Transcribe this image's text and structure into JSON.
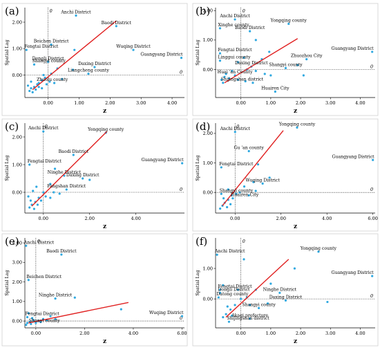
{
  "figure": {
    "colors": {
      "point": "#2ea8e0",
      "line": "#e02020",
      "axis": "#000000",
      "frame": "#cfcfcf"
    }
  },
  "chart_data": [
    {
      "panel": "(a)",
      "type": "scatter",
      "xlabel": "z",
      "ylabel": "Spatial Lag",
      "xlim": [
        -0.75,
        4.4
      ],
      "ylim": [
        -0.85,
        2.55
      ],
      "xticks": [
        "0.00",
        "1.00",
        "2.00",
        "3.00",
        "4.00"
      ],
      "xtick_values": [
        0,
        1,
        2,
        3,
        4
      ],
      "yticks": [
        "0.00",
        "1.00",
        "2.00"
      ],
      "ytick_values": [
        0,
        1,
        2
      ],
      "zero_label": "0",
      "fit_line": [
        [
          -0.5,
          -0.55
        ],
        [
          2.2,
          2.05
        ]
      ],
      "points": [
        {
          "x": 0.9,
          "y": 2.25,
          "label": "Anchi District"
        },
        {
          "x": 2.2,
          "y": 1.85,
          "label": "Baodi District"
        },
        {
          "x": 0.1,
          "y": 1.15,
          "label": "Beichen District"
        },
        {
          "x": -0.7,
          "y": 0.95,
          "label": "Fengtai District"
        },
        {
          "x": 0.0,
          "y": 0.5,
          "label": "Dongli District"
        },
        {
          "x": -0.45,
          "y": 0.4,
          "label": "Shangyi county"
        },
        {
          "x": 2.75,
          "y": 0.95,
          "label": "Wuqing District"
        },
        {
          "x": 4.3,
          "y": 0.65,
          "label": "Guangyang District"
        },
        {
          "x": 1.5,
          "y": 0.3,
          "label": "Daxing District"
        },
        {
          "x": 1.3,
          "y": 0.05,
          "label": "Liangcheng county"
        },
        {
          "x": -0.3,
          "y": -0.3,
          "label": "Zhuolu county"
        },
        {
          "x": 0.85,
          "y": 0.95,
          "label": ""
        },
        {
          "x": 0.8,
          "y": 0.2,
          "label": ""
        },
        {
          "x": 0.3,
          "y": 0.25,
          "label": ""
        },
        {
          "x": 0.1,
          "y": 0.05,
          "label": ""
        },
        {
          "x": -0.1,
          "y": -0.1,
          "label": ""
        },
        {
          "x": -0.2,
          "y": -0.2,
          "label": ""
        },
        {
          "x": -0.35,
          "y": -0.35,
          "label": ""
        },
        {
          "x": -0.45,
          "y": -0.45,
          "label": ""
        },
        {
          "x": -0.55,
          "y": -0.5,
          "label": ""
        },
        {
          "x": -0.6,
          "y": -0.6,
          "label": ""
        },
        {
          "x": -0.5,
          "y": -0.65,
          "label": ""
        },
        {
          "x": -0.4,
          "y": -0.55,
          "label": ""
        },
        {
          "x": -0.3,
          "y": -0.45,
          "label": ""
        },
        {
          "x": -0.2,
          "y": -0.5,
          "label": ""
        },
        {
          "x": -0.05,
          "y": -0.35,
          "label": ""
        },
        {
          "x": 0.05,
          "y": -0.25,
          "label": ""
        },
        {
          "x": 0.2,
          "y": -0.3,
          "label": ""
        },
        {
          "x": -0.65,
          "y": -0.4,
          "label": ""
        },
        {
          "x": -0.15,
          "y": 0.0,
          "label": ""
        },
        {
          "x": 0.45,
          "y": -0.15,
          "label": ""
        },
        {
          "x": -0.55,
          "y": -0.25,
          "label": ""
        }
      ]
    },
    {
      "panel": "(b)",
      "type": "scatter",
      "xlabel": "z",
      "ylabel": "Spatial Lag",
      "xlim": [
        -0.85,
        4.5
      ],
      "ylim": [
        -0.95,
        2.1
      ],
      "xticks": [
        "0.00",
        "1.00",
        "2.00",
        "3.00",
        "4.00"
      ],
      "xtick_values": [
        0,
        1,
        2,
        3,
        4
      ],
      "yticks": [
        "0.00",
        "1.00",
        "2.00"
      ],
      "ytick_values": [
        0,
        1,
        2
      ],
      "zero_label": "0",
      "fit_line": [
        [
          -0.55,
          -0.45
        ],
        [
          1.9,
          1.05
        ]
      ],
      "points": [
        {
          "x": -0.2,
          "y": 1.7,
          "label": "Anchi District"
        },
        {
          "x": 1.6,
          "y": 1.55,
          "label": "Yongqing county"
        },
        {
          "x": -0.7,
          "y": 1.4,
          "label": "Xinghe county"
        },
        {
          "x": 0.3,
          "y": 1.3,
          "label": "Baodi District"
        },
        {
          "x": -0.7,
          "y": 0.55,
          "label": "Fengtai District"
        },
        {
          "x": -0.7,
          "y": 0.3,
          "label": "Linggui county"
        },
        {
          "x": 4.4,
          "y": 0.6,
          "label": "Guangyang District"
        },
        {
          "x": 2.2,
          "y": 0.35,
          "label": "Zhuozhou City"
        },
        {
          "x": 0.35,
          "y": 0.1,
          "label": "Daxing District"
        },
        {
          "x": 1.5,
          "y": 0.05,
          "label": "Shangyi county"
        },
        {
          "x": -0.2,
          "y": -0.2,
          "label": "Huai 'an County"
        },
        {
          "x": -0.6,
          "y": -0.45,
          "label": "Shijingshan district"
        },
        {
          "x": 1.15,
          "y": -0.75,
          "label": "Huairen City"
        },
        {
          "x": 0.5,
          "y": 1.0,
          "label": ""
        },
        {
          "x": 0.95,
          "y": 0.6,
          "label": ""
        },
        {
          "x": 0.7,
          "y": 0.35,
          "label": ""
        },
        {
          "x": 0.1,
          "y": 0.4,
          "label": ""
        },
        {
          "x": -0.1,
          "y": 0.25,
          "label": ""
        },
        {
          "x": 0.2,
          "y": 0.0,
          "label": ""
        },
        {
          "x": 0.5,
          "y": -0.05,
          "label": ""
        },
        {
          "x": 0.8,
          "y": -0.15,
          "label": ""
        },
        {
          "x": 1.0,
          "y": -0.2,
          "label": ""
        },
        {
          "x": -0.3,
          "y": -0.05,
          "label": ""
        },
        {
          "x": -0.5,
          "y": -0.15,
          "label": ""
        },
        {
          "x": -0.4,
          "y": -0.3,
          "label": ""
        },
        {
          "x": -0.55,
          "y": -0.25,
          "label": ""
        },
        {
          "x": -0.65,
          "y": -0.35,
          "label": ""
        },
        {
          "x": -0.1,
          "y": -0.35,
          "label": ""
        },
        {
          "x": 0.15,
          "y": -0.4,
          "label": ""
        },
        {
          "x": 0.4,
          "y": -0.45,
          "label": ""
        },
        {
          "x": 2.1,
          "y": -0.2,
          "label": ""
        },
        {
          "x": 1.9,
          "y": 0.15,
          "label": ""
        }
      ]
    },
    {
      "panel": "(c)",
      "type": "scatter",
      "xlabel": "z",
      "ylabel": "Spatial Lag",
      "xlim": [
        -0.8,
        6.1
      ],
      "ylim": [
        -0.75,
        2.5
      ],
      "xticks": [
        "0.00",
        "2.00",
        "4.00"
      ],
      "xtick_values": [
        0,
        2,
        4
      ],
      "yticks": [
        "0.00",
        "1.00",
        "2.00"
      ],
      "ytick_values": [
        0,
        1,
        2
      ],
      "zero_label": "0",
      "fit_line": [
        [
          -0.5,
          -0.5
        ],
        [
          2.75,
          2.2
        ]
      ],
      "points": [
        {
          "x": 0.0,
          "y": 2.2,
          "label": "Anchi District"
        },
        {
          "x": 2.7,
          "y": 2.15,
          "label": "Yongqing county"
        },
        {
          "x": 1.3,
          "y": 1.35,
          "label": "Baodi District"
        },
        {
          "x": 6.0,
          "y": 1.05,
          "label": "Guangyang District"
        },
        {
          "x": -0.6,
          "y": 1.0,
          "label": "Fengtai District"
        },
        {
          "x": 0.9,
          "y": 0.6,
          "label": "Ninghe District"
        },
        {
          "x": 1.7,
          "y": 0.5,
          "label": "Daxing District"
        },
        {
          "x": 1.0,
          "y": 0.1,
          "label": "Fangshan District"
        },
        {
          "x": 2.0,
          "y": 0.45,
          "label": ""
        },
        {
          "x": 0.5,
          "y": 0.85,
          "label": ""
        },
        {
          "x": 0.3,
          "y": 0.3,
          "label": ""
        },
        {
          "x": 0.0,
          "y": 0.0,
          "label": ""
        },
        {
          "x": -0.2,
          "y": -0.2,
          "label": ""
        },
        {
          "x": -0.35,
          "y": -0.35,
          "label": ""
        },
        {
          "x": -0.5,
          "y": -0.45,
          "label": ""
        },
        {
          "x": -0.6,
          "y": -0.55,
          "label": ""
        },
        {
          "x": -0.4,
          "y": -0.6,
          "label": ""
        },
        {
          "x": -0.55,
          "y": -0.3,
          "label": ""
        },
        {
          "x": -0.25,
          "y": -0.45,
          "label": ""
        },
        {
          "x": -0.1,
          "y": -0.3,
          "label": ""
        },
        {
          "x": 0.1,
          "y": -0.15,
          "label": ""
        },
        {
          "x": 0.3,
          "y": -0.2,
          "label": ""
        },
        {
          "x": -0.65,
          "y": -0.15,
          "label": ""
        },
        {
          "x": -0.45,
          "y": 0.05,
          "label": ""
        },
        {
          "x": 0.45,
          "y": 0.0,
          "label": ""
        },
        {
          "x": 0.7,
          "y": -0.05,
          "label": ""
        },
        {
          "x": -0.3,
          "y": 0.2,
          "label": ""
        }
      ]
    },
    {
      "panel": "(d)",
      "type": "scatter",
      "xlabel": "z",
      "ylabel": "Spatial Lag",
      "xlim": [
        -0.85,
        6.1
      ],
      "ylim": [
        -0.7,
        2.35
      ],
      "xticks": [
        "0.00",
        "2.00",
        "4.00",
        "6.00"
      ],
      "xtick_values": [
        0,
        2,
        4,
        6
      ],
      "yticks": [
        "0.00",
        "1.00",
        "2.00"
      ],
      "ytick_values": [
        0,
        1,
        2
      ],
      "zero_label": "0",
      "fit_line": [
        [
          -0.55,
          -0.45
        ],
        [
          2.1,
          2.1
        ]
      ],
      "points": [
        {
          "x": 0.0,
          "y": 2.05,
          "label": "Anchi District"
        },
        {
          "x": 2.7,
          "y": 2.2,
          "label": "Yongqing county"
        },
        {
          "x": 0.6,
          "y": 1.4,
          "label": "Gu 'an county"
        },
        {
          "x": 6.0,
          "y": 1.1,
          "label": "Guangyang District"
        },
        {
          "x": -0.6,
          "y": 0.85,
          "label": "Fengtai District"
        },
        {
          "x": 1.2,
          "y": 0.3,
          "label": "Wuqing District"
        },
        {
          "x": 0.05,
          "y": -0.05,
          "label": "Shangyi county"
        },
        {
          "x": -0.1,
          "y": -0.2,
          "label": "Huairen City"
        },
        {
          "x": 1.0,
          "y": 0.95,
          "label": ""
        },
        {
          "x": 1.5,
          "y": 0.5,
          "label": ""
        },
        {
          "x": 0.8,
          "y": 0.35,
          "label": ""
        },
        {
          "x": 0.4,
          "y": 0.2,
          "label": ""
        },
        {
          "x": 0.2,
          "y": 0.0,
          "label": ""
        },
        {
          "x": -0.15,
          "y": -0.1,
          "label": ""
        },
        {
          "x": -0.3,
          "y": -0.25,
          "label": ""
        },
        {
          "x": -0.45,
          "y": -0.35,
          "label": ""
        },
        {
          "x": -0.55,
          "y": -0.45,
          "label": ""
        },
        {
          "x": -0.65,
          "y": -0.55,
          "label": ""
        },
        {
          "x": -0.35,
          "y": -0.5,
          "label": ""
        },
        {
          "x": -0.2,
          "y": -0.4,
          "label": ""
        },
        {
          "x": -0.5,
          "y": -0.2,
          "label": ""
        },
        {
          "x": -0.6,
          "y": -0.05,
          "label": ""
        },
        {
          "x": 0.6,
          "y": -0.1,
          "label": ""
        },
        {
          "x": 0.9,
          "y": 0.05,
          "label": ""
        },
        {
          "x": -0.3,
          "y": 0.1,
          "label": ""
        }
      ]
    },
    {
      "panel": "(e)",
      "type": "scatter",
      "xlabel": "z",
      "ylabel": "Spatial Lag",
      "xlim": [
        -0.45,
        6.1
      ],
      "ylim": [
        -0.35,
        4.25
      ],
      "xticks": [
        "0.00",
        "2.00",
        "4.00",
        "6.00"
      ],
      "xtick_values": [
        0,
        2,
        4,
        6
      ],
      "yticks": [
        "0.00",
        "1.00",
        "2.00",
        "3.00",
        "4.00"
      ],
      "ytick_values": [
        0,
        1,
        2,
        3,
        4
      ],
      "zero_label": "0",
      "fit_line": [
        [
          -0.3,
          -0.1
        ],
        [
          3.8,
          0.95
        ]
      ],
      "points": [
        {
          "x": -0.4,
          "y": 3.85,
          "label": "Anchi District"
        },
        {
          "x": 1.05,
          "y": 3.4,
          "label": "Baodi District"
        },
        {
          "x": -0.3,
          "y": 2.1,
          "label": "Beichen District"
        },
        {
          "x": 0.8,
          "y": 1.15,
          "label": "Ninghe District"
        },
        {
          "x": -0.35,
          "y": 0.2,
          "label": "Fengtai District"
        },
        {
          "x": 6.0,
          "y": 0.25,
          "label": "Wuqing District"
        },
        {
          "x": -0.2,
          "y": -0.15,
          "label": "Shunyi county"
        },
        {
          "x": 1.6,
          "y": 1.2,
          "label": ""
        },
        {
          "x": 3.5,
          "y": 0.6,
          "label": ""
        },
        {
          "x": 0.6,
          "y": 0.25,
          "label": ""
        },
        {
          "x": 0.3,
          "y": 0.1,
          "label": ""
        },
        {
          "x": 0.1,
          "y": 0.0,
          "label": ""
        },
        {
          "x": -0.1,
          "y": 0.05,
          "label": ""
        },
        {
          "x": -0.25,
          "y": -0.05,
          "label": ""
        },
        {
          "x": -0.35,
          "y": -0.1,
          "label": ""
        },
        {
          "x": -0.4,
          "y": -0.2,
          "label": ""
        },
        {
          "x": 0.0,
          "y": -0.1,
          "label": ""
        },
        {
          "x": 0.2,
          "y": -0.05,
          "label": ""
        },
        {
          "x": -0.15,
          "y": 0.15,
          "label": ""
        },
        {
          "x": 0.45,
          "y": 0.05,
          "label": ""
        },
        {
          "x": -0.3,
          "y": 0.4,
          "label": ""
        },
        {
          "x": 0.8,
          "y": 0.1,
          "label": ""
        }
      ]
    },
    {
      "panel": "(f)",
      "type": "scatter",
      "xlabel": "z",
      "ylabel": "Spatial Lag",
      "xlim": [
        -0.85,
        4.5
      ],
      "ylim": [
        -0.95,
        2.0
      ],
      "xticks": [
        "0.00",
        "1.00",
        "2.00",
        "3.00",
        "4.00"
      ],
      "xtick_values": [
        0,
        1,
        2,
        3,
        4
      ],
      "yticks": [
        "0.00",
        "1.00"
      ],
      "ytick_values": [
        0,
        1
      ],
      "zero_label": "0",
      "fit_line": [
        [
          -0.5,
          -0.6
        ],
        [
          1.6,
          1.3
        ]
      ],
      "points": [
        {
          "x": -0.8,
          "y": 1.45,
          "label": "Anchi District"
        },
        {
          "x": 2.6,
          "y": 1.55,
          "label": "Yongqing county"
        },
        {
          "x": -0.7,
          "y": 0.3,
          "label": "Fengtai District"
        },
        {
          "x": -0.7,
          "y": 0.2,
          "label": "Dongli District"
        },
        {
          "x": -0.75,
          "y": 0.05,
          "label": "Datong county"
        },
        {
          "x": 1.3,
          "y": 0.2,
          "label": "Ninghe District"
        },
        {
          "x": 4.4,
          "y": 0.75,
          "label": "Guangyang District"
        },
        {
          "x": 1.5,
          "y": -0.05,
          "label": "Daxing District"
        },
        {
          "x": 0.6,
          "y": -0.3,
          "label": "Shangyi county"
        },
        {
          "x": 0.3,
          "y": -0.65,
          "label": "Akagi prefecture"
        },
        {
          "x": -0.4,
          "y": -0.75,
          "label": "Shijingshan district"
        },
        {
          "x": 1.8,
          "y": 1.0,
          "label": ""
        },
        {
          "x": 1.0,
          "y": 0.5,
          "label": ""
        },
        {
          "x": 0.5,
          "y": 0.3,
          "label": ""
        },
        {
          "x": 0.2,
          "y": 0.05,
          "label": ""
        },
        {
          "x": 0.0,
          "y": 0.0,
          "label": ""
        },
        {
          "x": -0.2,
          "y": -0.2,
          "label": ""
        },
        {
          "x": -0.35,
          "y": -0.35,
          "label": ""
        },
        {
          "x": -0.5,
          "y": -0.5,
          "label": ""
        },
        {
          "x": -0.6,
          "y": -0.6,
          "label": ""
        },
        {
          "x": -0.45,
          "y": -0.25,
          "label": ""
        },
        {
          "x": -0.3,
          "y": -0.55,
          "label": ""
        },
        {
          "x": 0.3,
          "y": -0.2,
          "label": ""
        },
        {
          "x": 0.9,
          "y": -0.15,
          "label": ""
        },
        {
          "x": 2.9,
          "y": -0.1,
          "label": ""
        },
        {
          "x": -0.6,
          "y": 0.45,
          "label": ""
        },
        {
          "x": 0.1,
          "y": 1.3,
          "label": ""
        },
        {
          "x": -0.1,
          "y": 0.3,
          "label": ""
        }
      ]
    }
  ]
}
